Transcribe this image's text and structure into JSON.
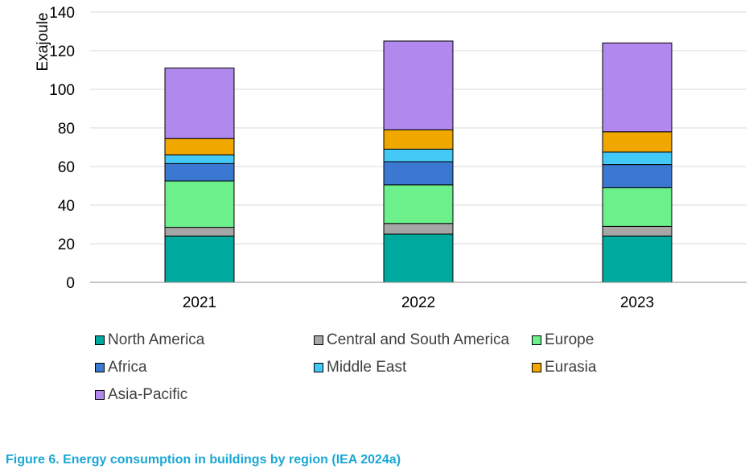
{
  "caption": "Figure 6. Energy consumption in buildings by region (IEA 2024a)",
  "caption_color": "#1aa7d6",
  "chart_data": {
    "type": "bar",
    "stacked": true,
    "title": "",
    "xlabel": "",
    "ylabel": "Exajoule",
    "ylim": [
      0,
      140
    ],
    "yticks": [
      0,
      20,
      40,
      60,
      80,
      100,
      120,
      140
    ],
    "ytick_labels": [
      "0",
      "20",
      "40",
      "60",
      "80",
      "100",
      "120",
      "140"
    ],
    "grid": true,
    "categories": [
      "2021",
      "2022",
      "2023"
    ],
    "series": [
      {
        "name": "North America",
        "color": "#00a99d",
        "values": [
          24,
          25,
          24
        ]
      },
      {
        "name": "Central and South America",
        "color": "#a6a6a6",
        "values": [
          4.5,
          5.5,
          5
        ]
      },
      {
        "name": "Europe",
        "color": "#6cf08c",
        "values": [
          24,
          20,
          20
        ]
      },
      {
        "name": "Africa",
        "color": "#3b78d1",
        "values": [
          9,
          12,
          12
        ]
      },
      {
        "name": "Middle East",
        "color": "#44c8f5",
        "values": [
          4.5,
          6.5,
          6.5
        ]
      },
      {
        "name": "Eurasia",
        "color": "#f0a800",
        "values": [
          8.5,
          10,
          10.5
        ]
      },
      {
        "name": "Asia-Pacific",
        "color": "#b088ee",
        "values": [
          36.5,
          46,
          46
        ]
      }
    ],
    "legend_position": "bottom"
  }
}
